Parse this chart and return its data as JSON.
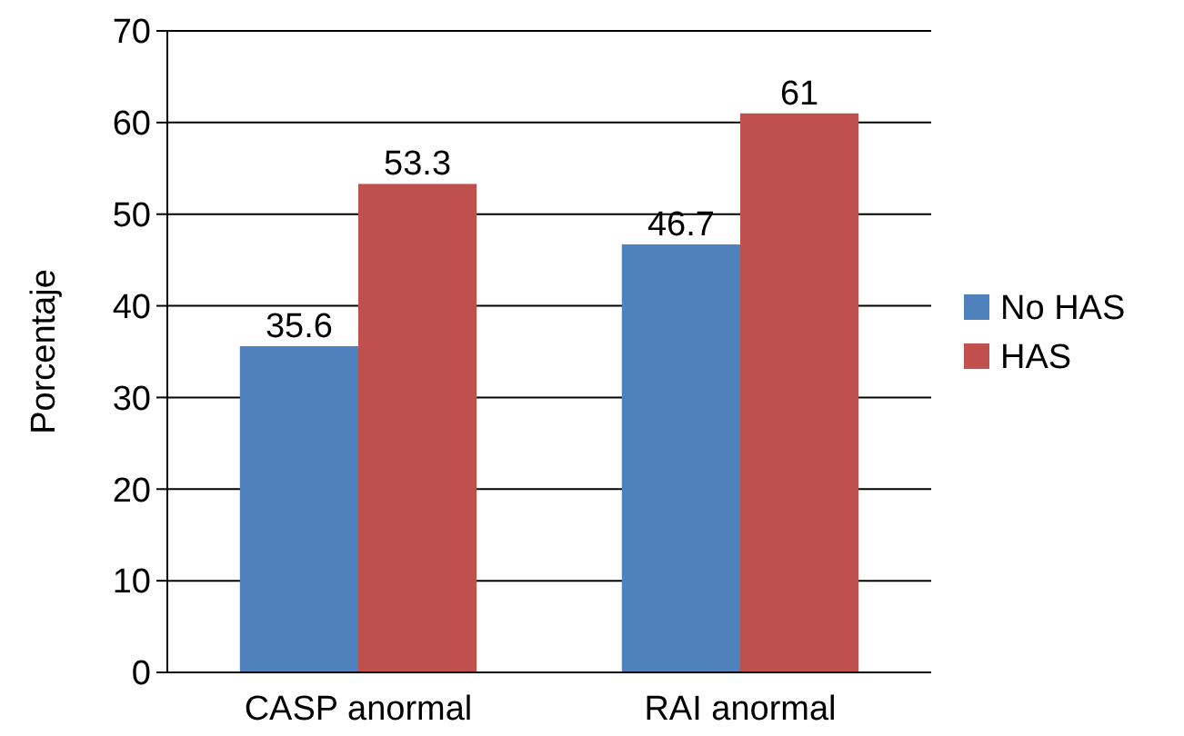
{
  "chart_data": {
    "type": "bar",
    "ylabel": "Porcentaje",
    "categories": [
      "CASP anormal",
      "RAI anormal"
    ],
    "series": [
      {
        "name": "No HAS",
        "color": "#4f81bd",
        "values": [
          35.6,
          46.7
        ]
      },
      {
        "name": "HAS",
        "color": "#c0504d",
        "values": [
          53.3,
          61
        ]
      }
    ],
    "ylim": [
      0,
      70
    ],
    "yticks": [
      0,
      10,
      20,
      30,
      40,
      50,
      60,
      70
    ],
    "grid": "y",
    "legend": "right",
    "data_labels": true
  }
}
